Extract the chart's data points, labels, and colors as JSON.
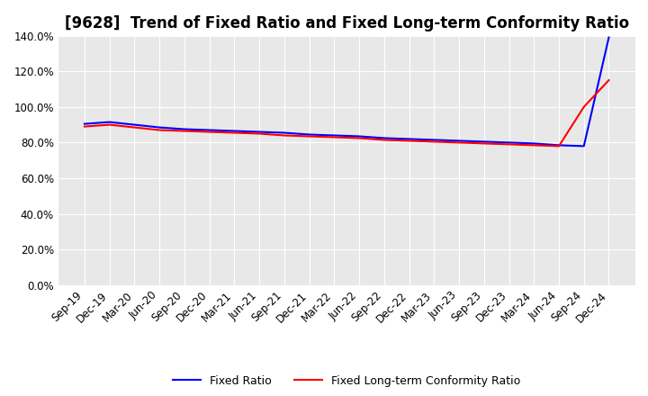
{
  "title": "[9628]  Trend of Fixed Ratio and Fixed Long-term Conformity Ratio",
  "ylim": [
    0,
    140
  ],
  "yticks": [
    0,
    20,
    40,
    60,
    80,
    100,
    120,
    140
  ],
  "background_color": "#ffffff",
  "plot_bg_color": "#e8e8e8",
  "grid_color": "#ffffff",
  "x_labels": [
    "Sep-19",
    "Dec-19",
    "Mar-20",
    "Jun-20",
    "Sep-20",
    "Dec-20",
    "Mar-21",
    "Jun-21",
    "Sep-21",
    "Dec-21",
    "Mar-22",
    "Jun-22",
    "Sep-22",
    "Dec-22",
    "Mar-23",
    "Jun-23",
    "Sep-23",
    "Dec-23",
    "Mar-24",
    "Jun-24",
    "Sep-24",
    "Dec-24"
  ],
  "fixed_ratio": [
    90.5,
    91.5,
    90.0,
    88.5,
    87.5,
    87.0,
    86.5,
    86.0,
    85.5,
    84.5,
    84.0,
    83.5,
    82.5,
    82.0,
    81.5,
    81.0,
    80.5,
    80.0,
    79.5,
    78.5,
    78.0,
    139.0
  ],
  "fixed_lt_ratio": [
    89.0,
    90.0,
    88.5,
    87.0,
    86.5,
    86.0,
    85.5,
    85.0,
    84.0,
    83.5,
    83.0,
    82.5,
    81.5,
    81.0,
    80.5,
    80.0,
    79.5,
    79.0,
    78.5,
    78.0,
    100.0,
    115.0
  ],
  "line_blue": "#0000ff",
  "line_red": "#ff0000",
  "legend_fixed_ratio": "Fixed Ratio",
  "legend_fixed_lt": "Fixed Long-term Conformity Ratio",
  "title_fontsize": 12,
  "tick_fontsize": 8.5
}
